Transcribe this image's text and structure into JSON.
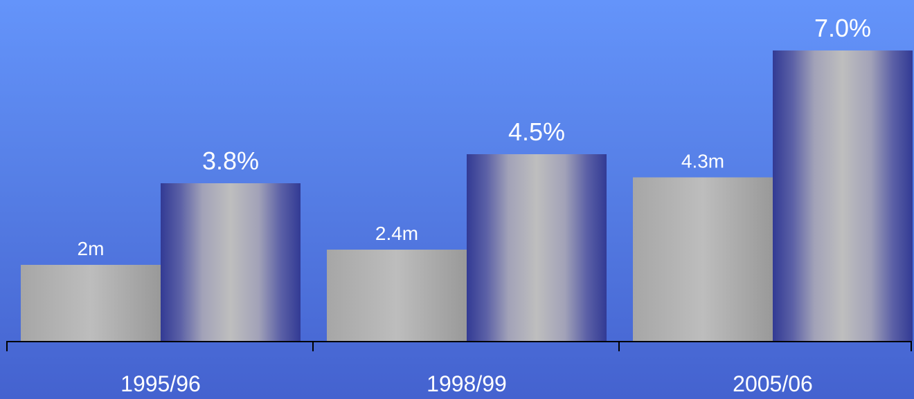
{
  "chart_data": {
    "type": "bar",
    "categories": [
      "1995/96",
      "1998/99",
      "2005/06"
    ],
    "series": [
      {
        "values": [
          2.0,
          2.4,
          4.3
        ],
        "labels": [
          "2m",
          "2.4m",
          "4.3m"
        ],
        "color": "#b4b4b4"
      },
      {
        "values": [
          3.8,
          4.5,
          7.0
        ],
        "labels": [
          "3.8%",
          "4.5%",
          "7.0%"
        ],
        "color": "#3a3f9a"
      }
    ],
    "title": "",
    "xlabel": "",
    "ylabel": "",
    "grid": false,
    "legend": "none"
  }
}
